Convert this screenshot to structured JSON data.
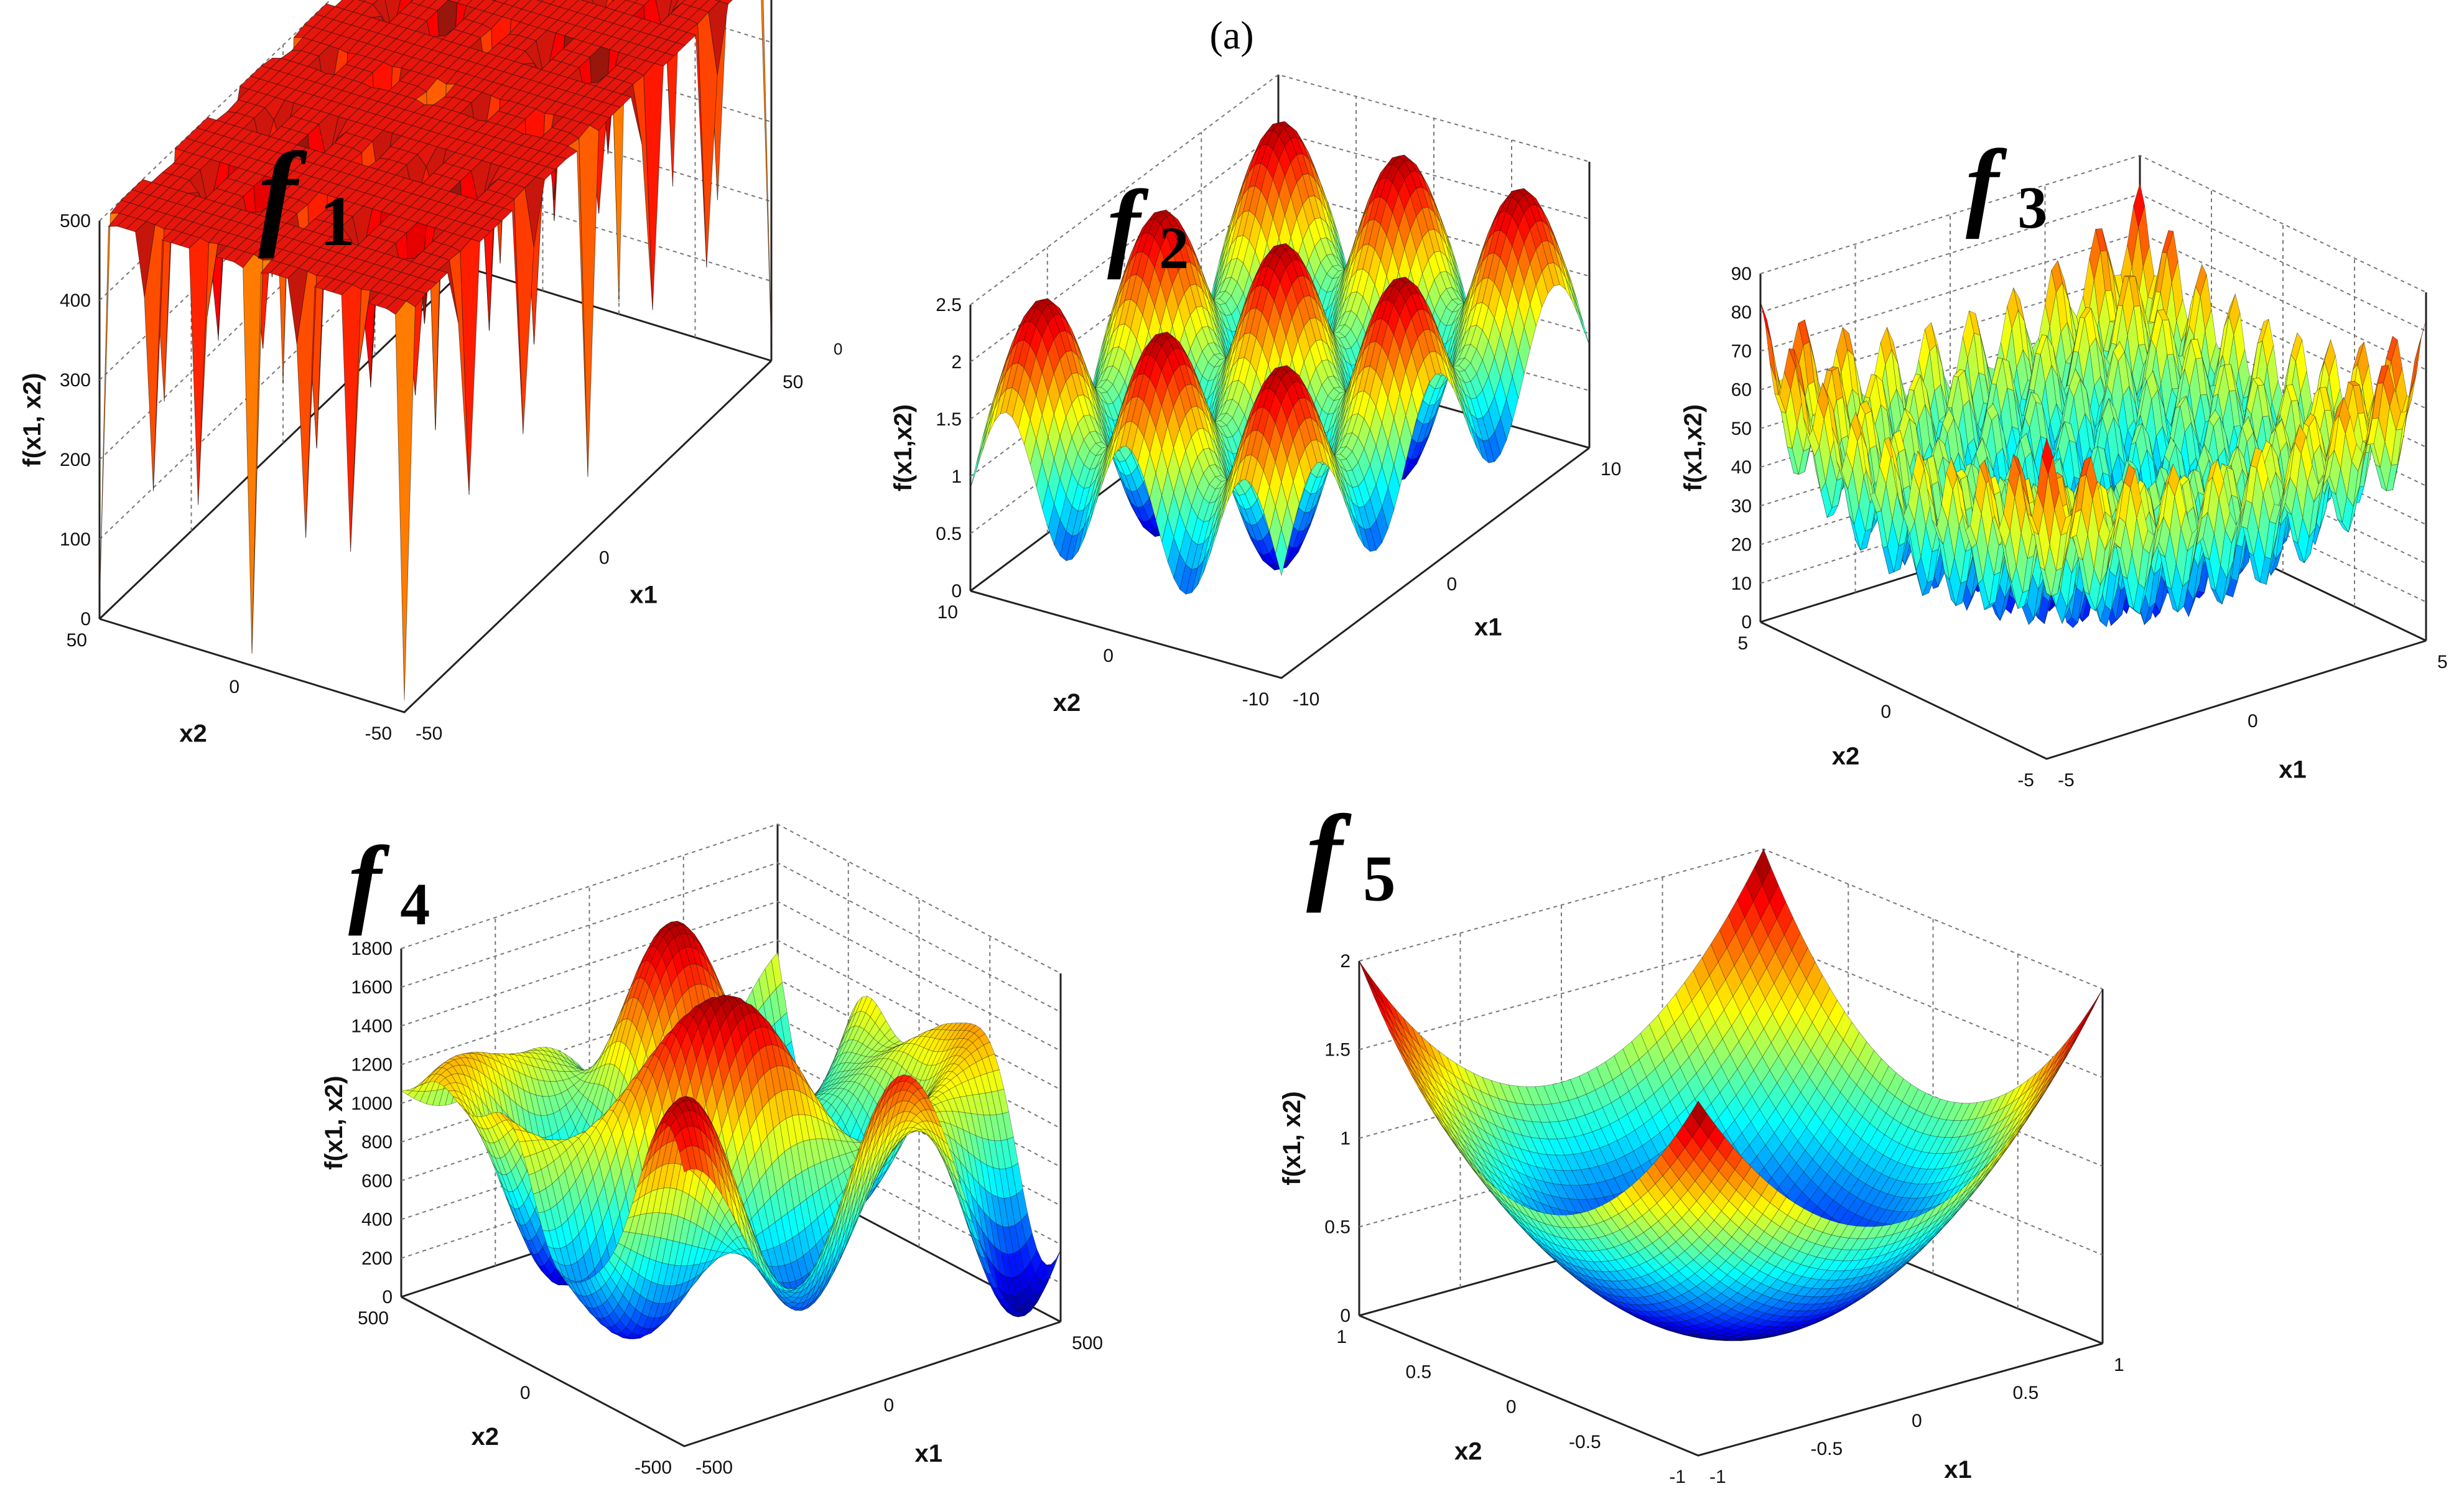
{
  "caption": "(a)",
  "chart_data": [
    {
      "type": "surface",
      "title": "f1",
      "title_letter": "f",
      "title_sub": "1",
      "zlabel": "f(x1, x2)",
      "xlabel": "x1",
      "ylabel": "x2",
      "xlim": [
        -50,
        50
      ],
      "ylim": [
        -50,
        50
      ],
      "zlim": [
        0,
        500
      ],
      "z_ticks": [
        "0",
        "100",
        "200",
        "300",
        "400",
        "500"
      ],
      "x_ticks": [
        "-50",
        "0",
        "50"
      ],
      "y_ticks": [
        "-50",
        "0",
        "50"
      ],
      "stray_label": "0"
    },
    {
      "type": "surface",
      "title": "f2",
      "title_letter": "f",
      "title_sub": "2",
      "zlabel": "f(x1,x2)",
      "xlabel": "x1",
      "ylabel": "x2",
      "xlim": [
        -10,
        10
      ],
      "ylim": [
        -10,
        10
      ],
      "zlim": [
        0,
        2.5
      ],
      "z_ticks": [
        "0",
        "0.5",
        "1",
        "1.5",
        "2",
        "2.5"
      ],
      "x_ticks": [
        "-10",
        "0",
        "10"
      ],
      "y_ticks": [
        "-10",
        "0",
        "10"
      ]
    },
    {
      "type": "surface",
      "title": "f3",
      "title_letter": "f",
      "title_sub": "3",
      "zlabel": "f(x1,x2)",
      "xlabel": "x1",
      "ylabel": "x2",
      "xlim": [
        -5,
        5
      ],
      "ylim": [
        -5,
        5
      ],
      "zlim": [
        0,
        90
      ],
      "z_ticks": [
        "0",
        "10",
        "20",
        "30",
        "40",
        "50",
        "60",
        "70",
        "80",
        "90"
      ],
      "x_ticks": [
        "-5",
        "0",
        "5"
      ],
      "y_ticks": [
        "-5",
        "0",
        "5"
      ]
    },
    {
      "type": "surface",
      "title": "f4",
      "title_letter": "f",
      "title_sub": "4",
      "zlabel": "f(x1, x2)",
      "xlabel": "x1",
      "ylabel": "x2",
      "xlim": [
        -500,
        500
      ],
      "ylim": [
        -500,
        500
      ],
      "zlim": [
        0,
        1800
      ],
      "z_ticks": [
        "0",
        "200",
        "400",
        "600",
        "800",
        "1000",
        "1200",
        "1400",
        "1600",
        "1800"
      ],
      "x_ticks": [
        "-500",
        "0",
        "500"
      ],
      "y_ticks": [
        "-500",
        "0",
        "500"
      ]
    },
    {
      "type": "surface",
      "title": "f5",
      "title_letter": "f",
      "title_sub": "5",
      "zlabel": "f(x1, x2)",
      "xlabel": "x1",
      "ylabel": "x2",
      "xlim": [
        -1,
        1
      ],
      "ylim": [
        -1,
        1
      ],
      "zlim": [
        0,
        2
      ],
      "z_ticks": [
        "0",
        "0.5",
        "1",
        "1.5",
        "2"
      ],
      "x_ticks": [
        "-1",
        "-0.5",
        "0",
        "0.5",
        "1"
      ],
      "y_ticks": [
        "-1",
        "-0.5",
        "0",
        "0.5",
        "1"
      ]
    }
  ]
}
